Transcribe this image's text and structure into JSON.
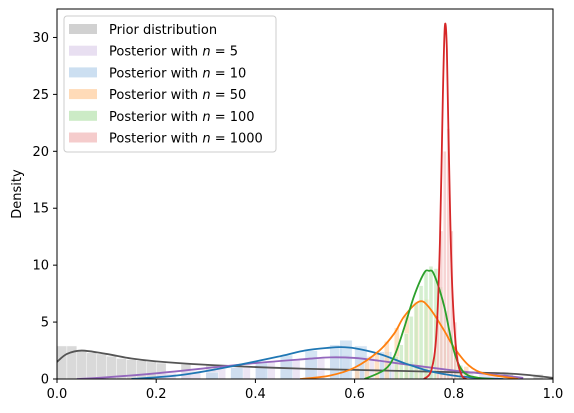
{
  "chart_data": {
    "type": "area",
    "xlabel": "",
    "ylabel": "Density",
    "xlim": [
      0.0,
      1.0
    ],
    "ylim": [
      0,
      32.5
    ],
    "x_ticks": [
      "0.0",
      "0.2",
      "0.4",
      "0.6",
      "0.8",
      "1.0"
    ],
    "x_tick_values": [
      0.0,
      0.2,
      0.4,
      0.6,
      0.8,
      1.0
    ],
    "y_ticks": [
      "0",
      "5",
      "10",
      "15",
      "20",
      "25",
      "30"
    ],
    "y_tick_values": [
      0,
      5,
      10,
      15,
      20,
      25,
      30
    ],
    "grid": false,
    "legend_placement": "top-left",
    "series": [
      {
        "name": "Prior distribution",
        "legend_prefix": "Prior distribution",
        "legend_n": "",
        "color": "#555555",
        "fill": "#cccccc",
        "x": [
          0.0,
          0.02,
          0.05,
          0.1,
          0.15,
          0.2,
          0.3,
          0.4,
          0.5,
          0.6,
          0.7,
          0.8,
          0.9,
          0.95,
          1.0
        ],
        "kde": [
          1.5,
          2.2,
          2.5,
          2.2,
          1.8,
          1.55,
          1.25,
          1.05,
          0.9,
          0.8,
          0.7,
          0.6,
          0.5,
          0.35,
          0.1
        ],
        "hist_x": [
          0.0,
          0.02,
          0.04,
          0.06,
          0.08,
          0.1,
          0.12,
          0.14,
          0.16,
          0.18,
          0.2,
          0.25,
          0.3,
          0.4,
          0.5,
          0.6,
          0.7,
          0.8,
          0.9,
          0.96
        ],
        "hist_y": [
          2.9,
          2.9,
          2.5,
          2.3,
          2.2,
          2.0,
          1.8,
          1.7,
          1.6,
          1.5,
          1.4,
          1.3,
          1.2,
          1.0,
          0.9,
          0.8,
          0.7,
          0.6,
          0.5,
          0.4
        ],
        "bin_width": 0.02
      },
      {
        "name": "Posterior with n = 5",
        "legend_prefix": "Posterior with ",
        "legend_n": "5",
        "color": "#9467bd",
        "fill": "#e5dcf0",
        "x": [
          0.04,
          0.1,
          0.2,
          0.3,
          0.4,
          0.5,
          0.55,
          0.6,
          0.65,
          0.7,
          0.8,
          0.9,
          0.94
        ],
        "kde": [
          0.0,
          0.15,
          0.5,
          0.95,
          1.4,
          1.75,
          1.9,
          1.85,
          1.6,
          1.3,
          0.75,
          0.3,
          0.1
        ],
        "hist_x": [
          0.2,
          0.25,
          0.3,
          0.35,
          0.4,
          0.45,
          0.5,
          0.55,
          0.6,
          0.65,
          0.7,
          0.75,
          0.8,
          0.85
        ],
        "hist_y": [
          0.5,
          0.7,
          0.9,
          1.1,
          1.5,
          1.7,
          1.9,
          2.1,
          2.0,
          1.7,
          1.3,
          1.0,
          0.7,
          0.4
        ],
        "bin_width": 0.04
      },
      {
        "name": "Posterior with n = 10",
        "legend_prefix": "Posterior with ",
        "legend_n": "10",
        "color": "#1f77b4",
        "fill": "#c6dbef",
        "x": [
          0.15,
          0.25,
          0.35,
          0.45,
          0.5,
          0.55,
          0.57,
          0.6,
          0.65,
          0.7,
          0.75,
          0.8,
          0.85,
          0.9
        ],
        "kde": [
          0.0,
          0.35,
          1.1,
          2.0,
          2.5,
          2.75,
          2.8,
          2.7,
          2.2,
          1.4,
          0.7,
          0.3,
          0.1,
          0.0
        ],
        "hist_x": [
          0.3,
          0.35,
          0.4,
          0.45,
          0.5,
          0.55,
          0.57,
          0.6,
          0.65,
          0.7,
          0.75,
          0.8
        ],
        "hist_y": [
          0.6,
          1.0,
          1.5,
          2.1,
          2.5,
          3.0,
          3.4,
          2.9,
          2.4,
          1.5,
          0.8,
          0.3
        ],
        "bin_width": 0.025
      },
      {
        "name": "Posterior with n = 50",
        "legend_prefix": "Posterior with ",
        "legend_n": "50",
        "color": "#ff7f0e",
        "fill": "#ffd7b0",
        "x": [
          0.49,
          0.55,
          0.6,
          0.65,
          0.68,
          0.7,
          0.73,
          0.75,
          0.78,
          0.8,
          0.83,
          0.86,
          0.9,
          0.93
        ],
        "kde": [
          0.0,
          0.3,
          1.0,
          2.5,
          4.0,
          5.5,
          6.8,
          6.3,
          4.3,
          2.8,
          1.2,
          0.5,
          0.2,
          0.0
        ],
        "hist_x": [
          0.6,
          0.62,
          0.64,
          0.66,
          0.68,
          0.7,
          0.72,
          0.74,
          0.76,
          0.78,
          0.8,
          0.82
        ],
        "hist_y": [
          1.0,
          1.6,
          2.4,
          3.3,
          4.5,
          5.6,
          6.8,
          7.0,
          5.2,
          3.8,
          2.4,
          1.1
        ],
        "bin_width": 0.01
      },
      {
        "name": "Posterior with n = 100",
        "legend_prefix": "Posterior with ",
        "legend_n": "100",
        "color": "#2ca02c",
        "fill": "#c7e9c0",
        "x": [
          0.62,
          0.66,
          0.68,
          0.7,
          0.72,
          0.74,
          0.75,
          0.76,
          0.78,
          0.8,
          0.82,
          0.85,
          0.88
        ],
        "kde": [
          0.0,
          0.8,
          2.0,
          4.5,
          7.3,
          9.3,
          9.5,
          9.2,
          6.5,
          2.5,
          0.6,
          0.1,
          0.0
        ],
        "hist_x": [
          0.68,
          0.69,
          0.7,
          0.71,
          0.72,
          0.73,
          0.74,
          0.75,
          0.76,
          0.77,
          0.78,
          0.79,
          0.8,
          0.81
        ],
        "hist_y": [
          2.0,
          3.0,
          4.0,
          5.5,
          6.7,
          8.2,
          9.4,
          9.9,
          9.7,
          8.1,
          6.0,
          4.0,
          2.6,
          1.2
        ],
        "bin_width": 0.008
      },
      {
        "name": "Posterior with n = 1000",
        "legend_prefix": "Posterior with ",
        "legend_n": "1000",
        "color": "#d62728",
        "fill": "#f4c6c6",
        "x": [
          0.74,
          0.755,
          0.765,
          0.772,
          0.778,
          0.782,
          0.786,
          0.79,
          0.796,
          0.805,
          0.815,
          0.825
        ],
        "kde": [
          0.0,
          0.8,
          4.0,
          12.0,
          25.0,
          31.0,
          29.0,
          20.0,
          9.0,
          2.5,
          0.4,
          0.0
        ],
        "hist_x": [
          0.765,
          0.772,
          0.779,
          0.786,
          0.793,
          0.8
        ],
        "hist_y": [
          5.5,
          13.0,
          20.0,
          22.0,
          13.0,
          5.0
        ],
        "bin_width": 0.006
      }
    ]
  }
}
